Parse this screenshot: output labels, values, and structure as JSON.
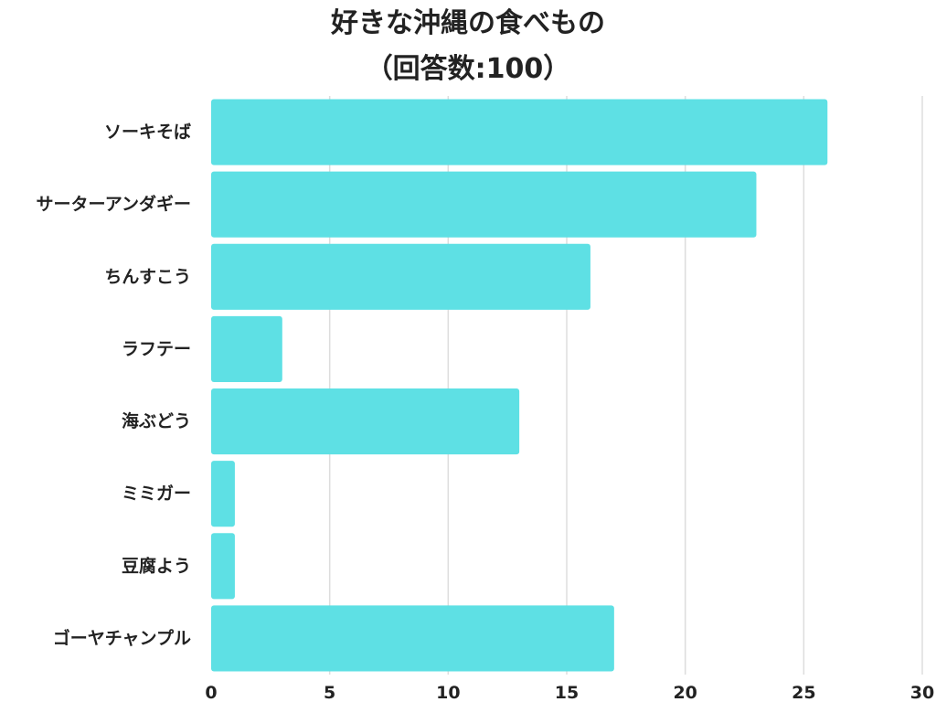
{
  "chart_data": {
    "type": "bar",
    "orientation": "horizontal",
    "title": "好きな沖縄の食べもの",
    "subtitle": "（回答数:100）",
    "categories": [
      "ソーキそば",
      "サーターアンダギー",
      "ちんすこう",
      "ラフテー",
      "海ぶどう",
      "ミミガー",
      "豆腐よう",
      "ゴーヤチャンプル"
    ],
    "values": [
      26,
      23,
      16,
      3,
      13,
      1,
      1,
      17
    ],
    "xlim": [
      0,
      30
    ],
    "xticks": [
      0,
      5,
      10,
      15,
      20,
      25,
      30
    ],
    "xlabel": "",
    "ylabel": "",
    "grid": "vertical",
    "legend": "none",
    "colors": {
      "bar": "#5ee0e4",
      "grid": "#dddddd",
      "text": "#222222"
    }
  }
}
